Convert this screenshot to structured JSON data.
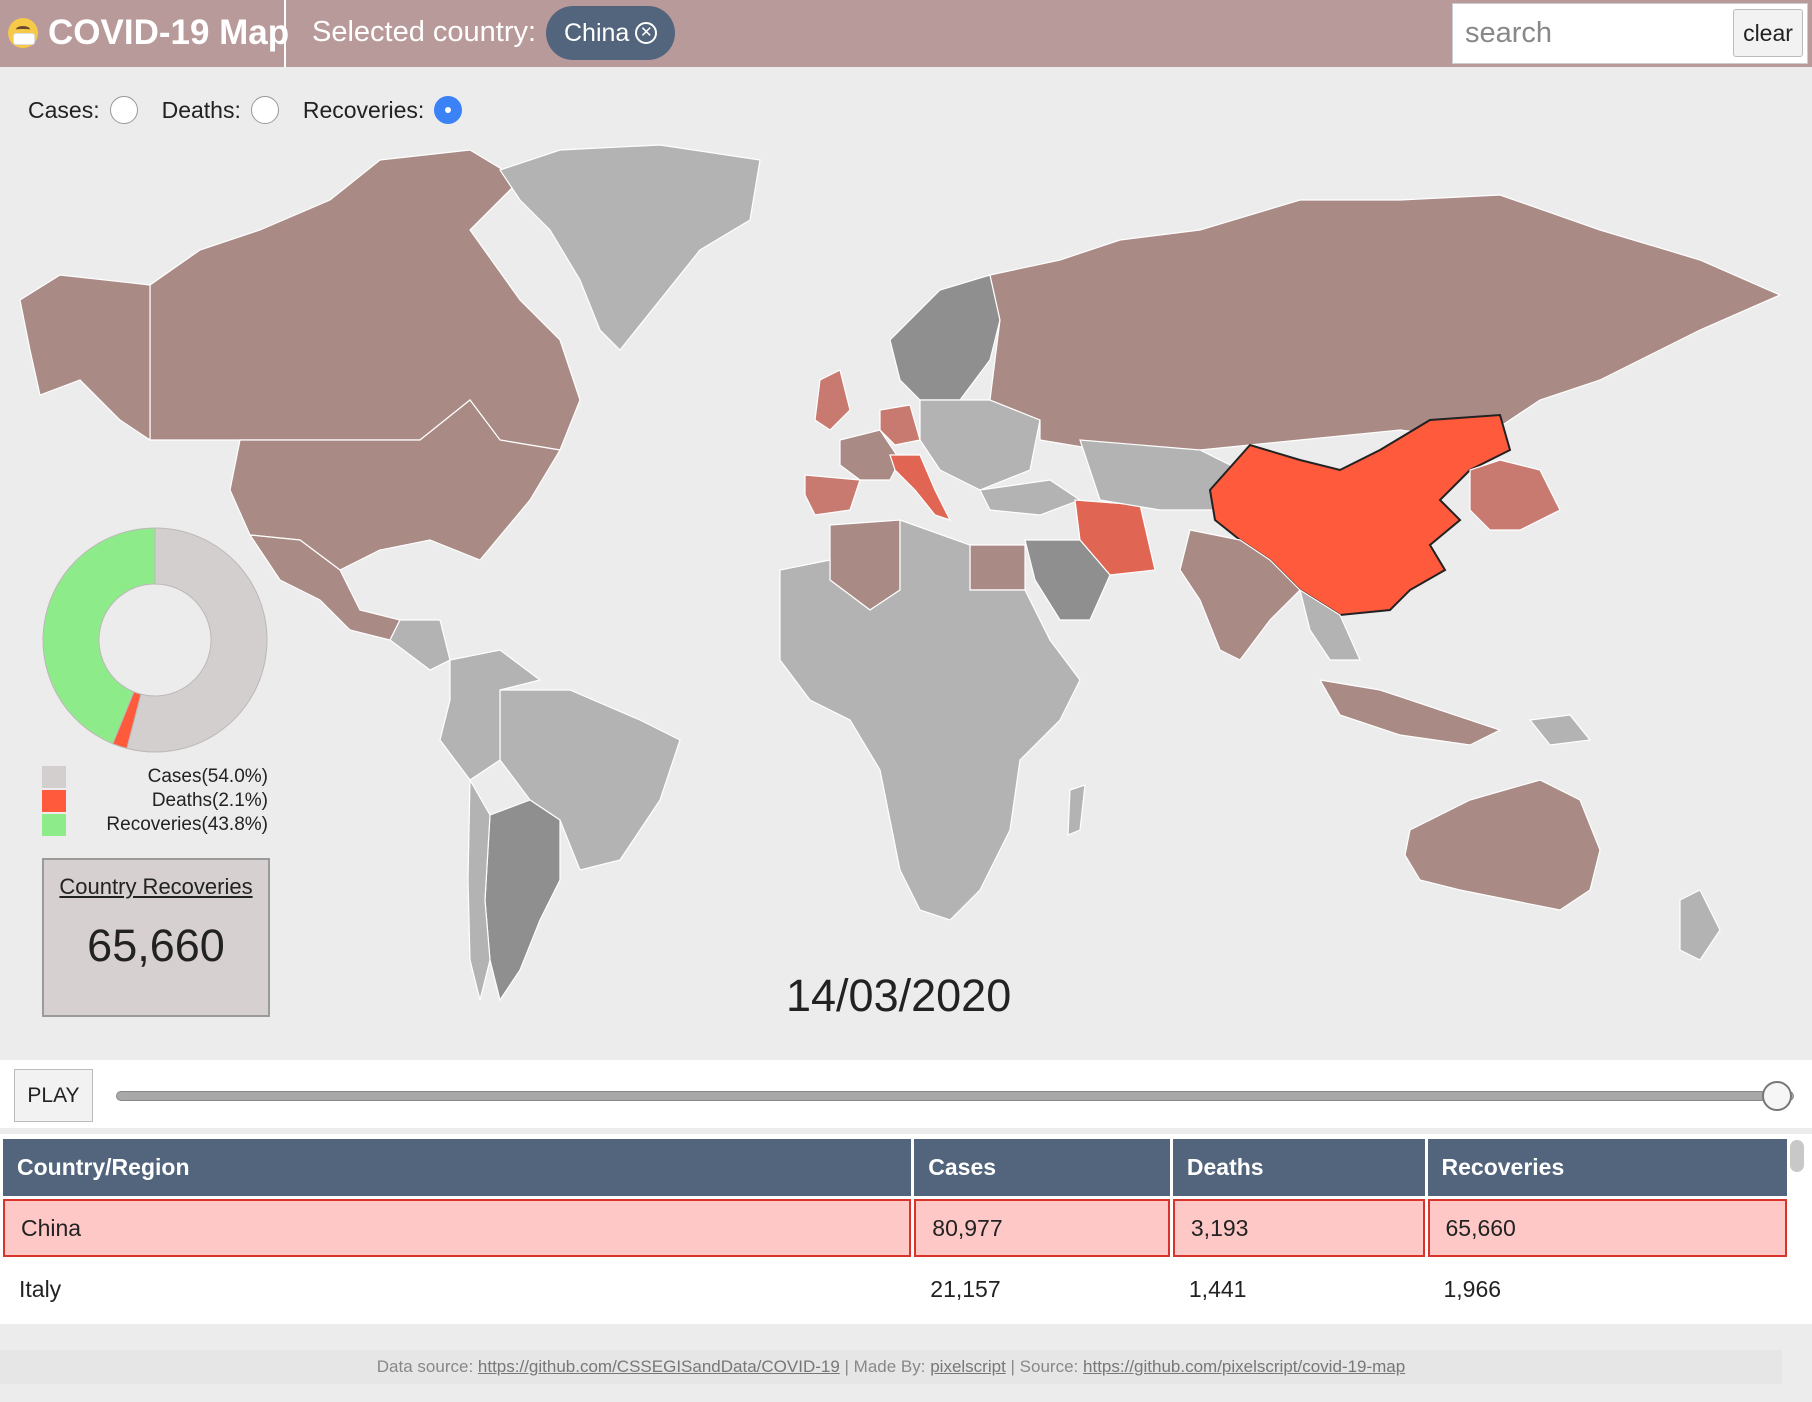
{
  "header": {
    "title": "COVID-19 Map",
    "selected_label": "Selected country:",
    "selected_country": "China",
    "search_placeholder": "search",
    "clear_label": "clear"
  },
  "modes": [
    {
      "label": "Cases:",
      "checked": false
    },
    {
      "label": "Deaths:",
      "checked": false
    },
    {
      "label": "Recoveries:",
      "checked": true
    }
  ],
  "donut": {
    "slices": [
      {
        "label": "Cases(54.0%)",
        "percent": 54.0,
        "color": "#d4cfcf"
      },
      {
        "label": "Deaths(2.1%)",
        "percent": 2.1,
        "color": "#ff5a3c"
      },
      {
        "label": "Recoveries(43.8%)",
        "percent": 43.8,
        "color": "#8eeb8a"
      }
    ]
  },
  "stat_box": {
    "title": "Country Recoveries",
    "value": "65,660"
  },
  "date": "14/03/2020",
  "timeline": {
    "play_label": "PLAY",
    "position": 0.99
  },
  "table": {
    "headers": [
      "Country/Region",
      "Cases",
      "Deaths",
      "Recoveries"
    ],
    "rows": [
      {
        "country": "China",
        "cases": "80,977",
        "deaths": "3,193",
        "recoveries": "65,660",
        "selected": true
      },
      {
        "country": "Italy",
        "cases": "21,157",
        "deaths": "1,441",
        "recoveries": "1,966",
        "selected": false
      }
    ]
  },
  "footer": {
    "data_source_label": "Data source:",
    "data_source_link": "https://github.com/CSSEGISandData/COVID-19",
    "made_by_label": "| Made By:",
    "made_by_link": "pixelscript",
    "source_label": "| Source:",
    "source_link": "https://github.com/pixelscript/covid-19-map"
  },
  "map_colors": {
    "no_data": "#b3b3b3",
    "dark": "#8f8f8f",
    "low": "#a98a85",
    "mid": "#c97a70",
    "high": "#e06553",
    "selected": "#ff5a3c"
  }
}
